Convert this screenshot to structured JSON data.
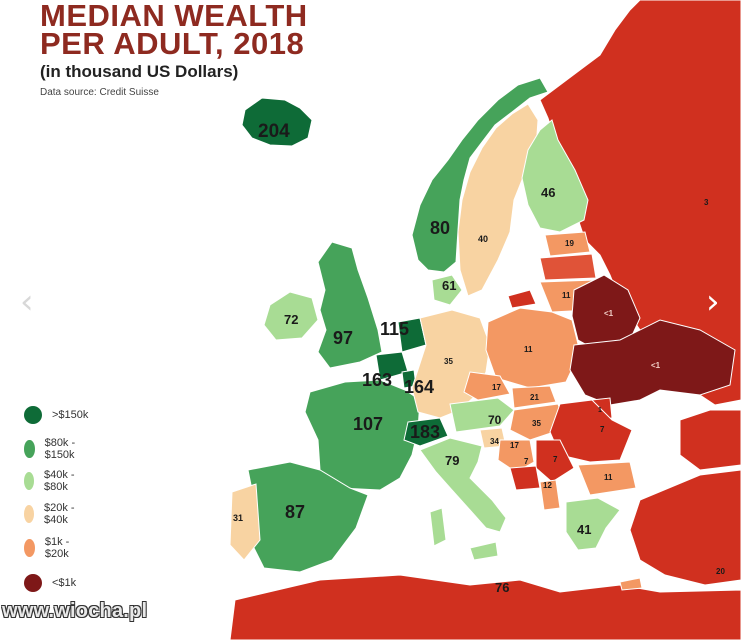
{
  "title_line1": "MEDIAN WEALTH",
  "title_line2": "PER ADULT, 2018",
  "subtitle": "(in thousand US Dollars)",
  "source": "Data source: Credit Suisse",
  "colors": {
    "gt150": "#0e6b37",
    "c80_150": "#46a35a",
    "c40_80": "#a8dc94",
    "c20_40": "#f8d3a2",
    "c1_20": "#f39863",
    "lt1": "#7e1818",
    "red": "#d0301f",
    "redLight": "#e05338"
  },
  "legend": [
    {
      "label": ">$150k",
      "color": "#0e6b37"
    },
    {
      "label": "$80k - $150k",
      "color": "#46a35a"
    },
    {
      "label": "$40k - $80k",
      "color": "#a8dc94"
    },
    {
      "label": "$20k - $40k",
      "color": "#f8d3a2"
    },
    {
      "label": "$1k - $20k",
      "color": "#f39863"
    },
    {
      "label": "<$1k",
      "color": "#7e1818"
    }
  ],
  "country_values": {
    "iceland": "204",
    "norway": "80",
    "sweden": "40",
    "finland": "46",
    "denmark": "61",
    "ireland": "72",
    "uk": "97",
    "netherlands": "115",
    "belgium": "163",
    "luxembourg": "164",
    "france": "107",
    "switzerland": "183",
    "germany": "35",
    "austria": "70",
    "italy": "79",
    "slovenia": "34",
    "croatia": "17",
    "czechia": "17",
    "slovakia": "21",
    "hungary": "35",
    "poland": "11",
    "estonia": "19",
    "lithuania": "11",
    "belarus": "<1",
    "ukraine": "<1",
    "romania": "7",
    "bulgaria": "11",
    "serbia": "7",
    "bosnia": "7",
    "albania": "12",
    "greece": "41",
    "portugal": "31",
    "spain": "87",
    "russia": "3",
    "malta": "76",
    "moldova": "1",
    "turkey": "20"
  },
  "nav": {
    "prev": "‹",
    "next": "›"
  },
  "watermark": "www.wiocha.pl"
}
